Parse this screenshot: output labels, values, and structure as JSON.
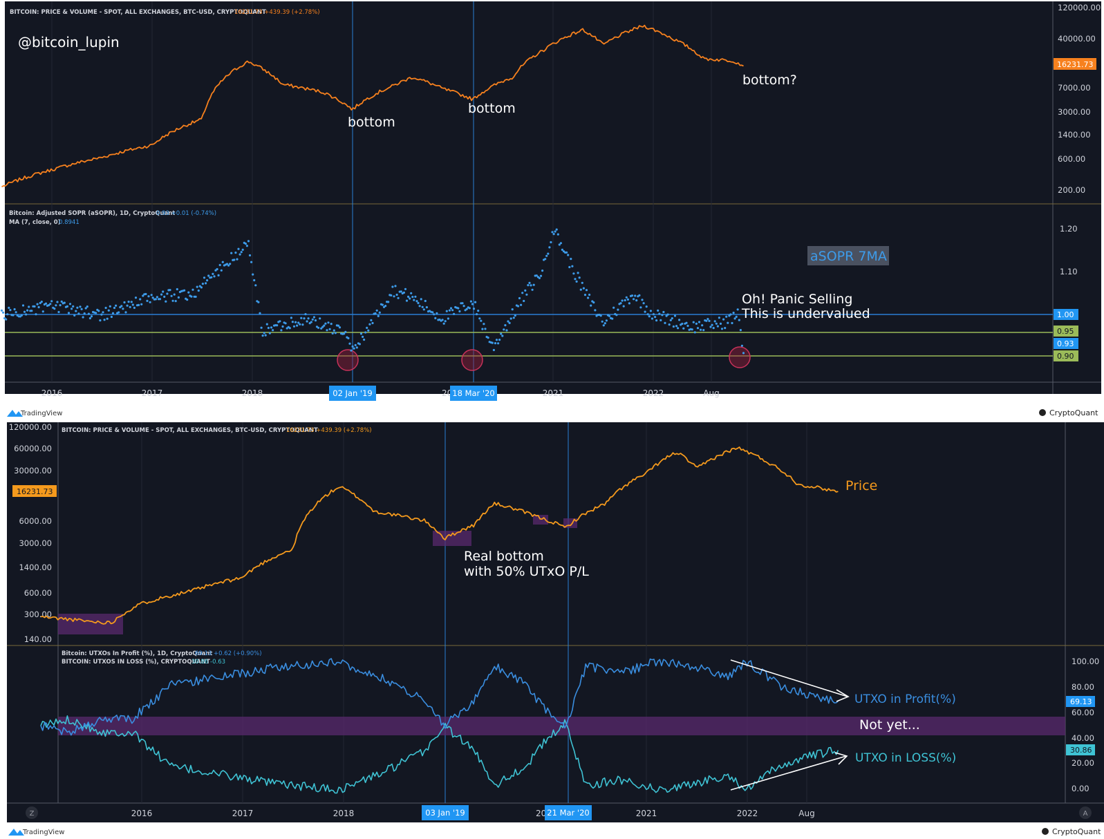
{
  "colors": {
    "bg": "#131722",
    "price_top": "#f7811e",
    "price_bottom": "#f59a1d",
    "asopr": "#3d9be9",
    "utxo_profit": "#3a8ee0",
    "utxo_loss": "#3fc3d4",
    "green_line": "#9bbb59",
    "purple_band": "#5a2a6e",
    "axis_text": "#d1d4dc",
    "annot": "#ffffff",
    "cq_tag": "#2196f3"
  },
  "top_panel": {
    "header": "BITCOIN: PRICE & VOLUME - SPOT, ALL EXCHANGES, BTC-USD, CRYPTOQUANT",
    "header_values": "16231.73 +439.39 (+2.78%)",
    "watermark": "@bitcoin_lupin",
    "price_tag": "16231.73",
    "annotations": [
      "bottom",
      "bottom",
      "bottom?"
    ]
  },
  "asopr_panel": {
    "header": "Bitcoin: Adjusted SOPR (aSOPR), 1D, CryptoQuant",
    "header_values": "0.93 +0.01 (-0.74%)",
    "ma_label": "MA (7, close, 0)",
    "ma_value": "0.8941",
    "badge": "aSOPR 7MA",
    "panic_line1": "Oh! Panic Selling",
    "panic_line2": "This is undervalued",
    "tags": [
      "1.00",
      "0.95",
      "0.93",
      "0.90"
    ]
  },
  "chart1_axis": {
    "x_ticks": [
      "2016",
      "2017",
      "2018",
      "2021",
      "2022",
      "Aug"
    ],
    "date_tags": [
      "02 Jan '19",
      "18 Mar '20"
    ],
    "date_tag_prefix": "20"
  },
  "footer1": {
    "left": "TradingView",
    "right": "CryptoQuant"
  },
  "bottom_panel": {
    "header": "BITCOIN: PRICE & VOLUME - SPOT, ALL EXCHANGES, BTC-USD, CRYPTOQUANT",
    "header_values": "16231.73 +439.39 (+2.78%)",
    "price_tag": "16231.73",
    "price_label": "Price",
    "real_bottom_1": "Real bottom",
    "real_bottom_2": "with 50% UTxO P/L"
  },
  "utxo_panel": {
    "header1": "Bitcoin: UTXOs In Profit (%), 1D, CryptoQuant",
    "header1_values": "69.13 +0.62 (+0.90%)",
    "header2": "BITCOIN: UTXOS IN LOSS (%), CRYPTOQUANT",
    "header2_values": "30.86 -0.63",
    "profit_label": "UTXO in Profit(%)",
    "loss_label": "UTXO in LOSS(%)",
    "not_yet": "Not yet...",
    "profit_tag": "69.13",
    "loss_tag": "30.86"
  },
  "chart2_axis": {
    "x_ticks": [
      "2016",
      "2017",
      "2018",
      "2021",
      "2022",
      "Aug"
    ],
    "date_tags": [
      "03 Jan '19",
      "21 Mar '20"
    ],
    "date_tag_prefix": "20",
    "corner_left": "Z",
    "corner_right": "A"
  },
  "footer2": {
    "left": "TradingView",
    "right": "CryptoQuant"
  },
  "chart_data": [
    {
      "type": "line",
      "title": "BITCOIN: PRICE & VOLUME - SPOT, ALL EXCHANGES, BTC-USD, CRYPTOQUANT",
      "scale": "log",
      "y_ticks": [
        "120000.00",
        "40000.00",
        "7000.00",
        "3000.00",
        "1400.00",
        "600.00",
        "200.00"
      ],
      "ylim": [
        150,
        130000
      ],
      "x": [
        2015.5,
        2016.0,
        2016.5,
        2017.0,
        2017.5,
        2017.96,
        2018.3,
        2018.7,
        2019.0,
        2019.4,
        2019.6,
        2019.9,
        2020.2,
        2020.6,
        2020.9,
        2021.3,
        2021.5,
        2021.9,
        2022.2,
        2022.5,
        2022.8,
        2022.9
      ],
      "values": [
        230,
        420,
        650,
        1000,
        2500,
        19000,
        8500,
        6500,
        3500,
        8000,
        11000,
        7300,
        5000,
        11000,
        28000,
        58000,
        34000,
        67000,
        42000,
        21000,
        19500,
        16231.73
      ],
      "series_name": "Price"
    },
    {
      "type": "line",
      "title": "Bitcoin: Adjusted SOPR (aSOPR), 1D, CryptoQuant",
      "series_name": "aSOPR 7MA",
      "y_ticks": [
        "1.20",
        "1.10"
      ],
      "ylim": [
        0.86,
        1.24
      ],
      "reference_lines": [
        1.0,
        0.95,
        0.9
      ],
      "current": 0.93,
      "x": [
        2015.5,
        2016.0,
        2016.5,
        2017.0,
        2017.4,
        2017.96,
        2018.1,
        2018.5,
        2018.9,
        2019.0,
        2019.4,
        2019.6,
        2019.9,
        2020.2,
        2020.4,
        2020.7,
        2020.9,
        2021.0,
        2021.3,
        2021.5,
        2021.8,
        2022.0,
        2022.4,
        2022.7,
        2022.85,
        2022.9
      ],
      "values": [
        1.0,
        1.02,
        1.0,
        1.04,
        1.05,
        1.17,
        0.96,
        0.99,
        0.96,
        0.91,
        1.06,
        1.04,
        0.99,
        1.03,
        0.92,
        1.04,
        1.11,
        1.21,
        1.06,
        0.98,
        1.05,
        1.0,
        0.97,
        0.98,
        1.0,
        0.91
      ]
    },
    {
      "type": "line",
      "title": "BITCOIN: PRICE & VOLUME - SPOT, ALL EXCHANGES, BTC-USD, CRYPTOQUANT",
      "scale": "log",
      "series_name": "Price",
      "y_ticks": [
        "120000.00",
        "60000.00",
        "30000.00",
        "6000.00",
        "3000.00",
        "1400.00",
        "600.00",
        "300.00",
        "140.00"
      ],
      "ylim": [
        135,
        125000
      ],
      "x": [
        2015.0,
        2015.5,
        2015.7,
        2016.0,
        2016.5,
        2017.0,
        2017.5,
        2017.96,
        2018.3,
        2018.8,
        2019.0,
        2019.3,
        2019.5,
        2019.9,
        2020.2,
        2020.6,
        2021.0,
        2021.3,
        2021.5,
        2021.9,
        2022.2,
        2022.5,
        2022.9
      ],
      "values": [
        280,
        240,
        230,
        430,
        650,
        1000,
        2500,
        19000,
        8500,
        6300,
        3500,
        5500,
        11000,
        7300,
        5000,
        11000,
        29000,
        58000,
        34000,
        67000,
        42000,
        20500,
        16231.73
      ]
    },
    {
      "type": "line",
      "title": "Bitcoin: UTXOs In Profit (%) / UTXOs In Loss (%)",
      "y_ticks": [
        "100.00",
        "80.00",
        "60.00",
        "40.00",
        "20.00",
        "0.00"
      ],
      "ylim": [
        -2,
        104
      ],
      "x": [
        2015.0,
        2015.3,
        2015.6,
        2015.9,
        2016.3,
        2016.8,
        2017.3,
        2017.96,
        2018.4,
        2018.8,
        2019.0,
        2019.3,
        2019.5,
        2019.8,
        2020.0,
        2020.2,
        2020.4,
        2020.8,
        2021.1,
        2021.5,
        2021.8,
        2022.0,
        2022.3,
        2022.6,
        2022.9
      ],
      "series": [
        {
          "name": "UTXO in Profit(%)",
          "values": [
            50,
            45,
            55,
            55,
            82,
            88,
            95,
            100,
            86,
            70,
            50,
            70,
            96,
            82,
            62,
            48,
            96,
            92,
            100,
            95,
            88,
            100,
            82,
            74,
            69.13
          ]
        },
        {
          "name": "UTXO in LOSS(%)",
          "values": [
            50,
            55,
            45,
            45,
            18,
            12,
            5,
            0,
            14,
            30,
            50,
            30,
            4,
            18,
            38,
            52,
            4,
            8,
            0,
            5,
            12,
            0,
            18,
            26,
            30.86
          ]
        }
      ]
    }
  ]
}
